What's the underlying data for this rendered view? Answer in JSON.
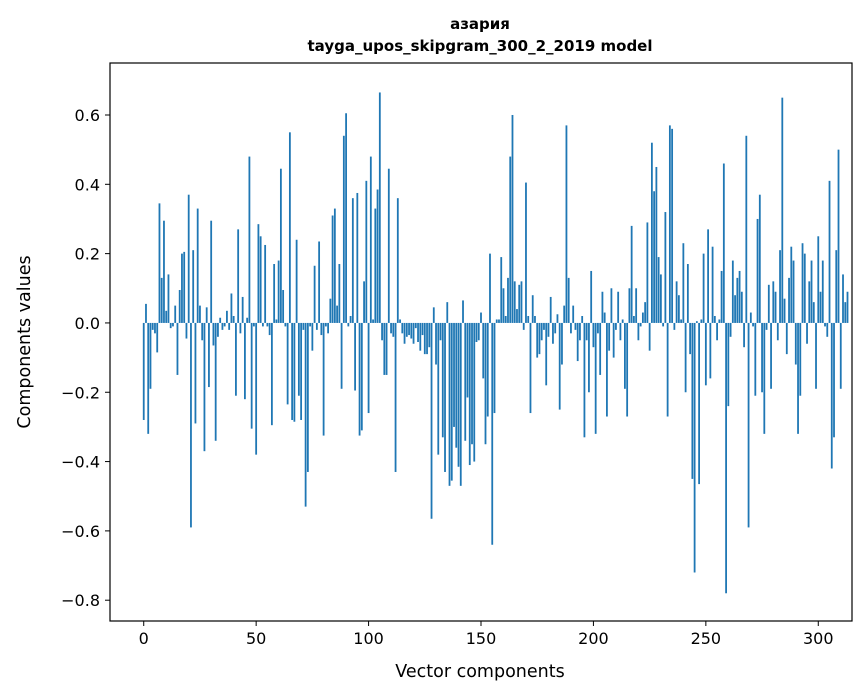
{
  "chart_data": {
    "type": "bar",
    "title": "азария",
    "subtitle": "tayga_upos_skipgram_300_2_2019 model",
    "xlabel": "Vector components",
    "ylabel": "Components values",
    "xlim": [
      -15,
      315
    ],
    "ylim": [
      -0.86,
      0.75
    ],
    "xticks": [
      0,
      50,
      100,
      150,
      200,
      250,
      300
    ],
    "yticks": [
      -0.8,
      -0.6,
      -0.4,
      -0.2,
      0.0,
      0.2,
      0.4,
      0.6
    ],
    "ytick_labels": [
      "−0.8",
      "−0.6",
      "−0.4",
      "−0.2",
      "0.0",
      "0.2",
      "0.4",
      "0.6"
    ],
    "bar_color": "#1f77b4",
    "series": [
      {
        "name": "азария",
        "values": [
          -0.28,
          0.055,
          -0.32,
          -0.19,
          -0.02,
          -0.03,
          -0.085,
          0.345,
          0.13,
          0.295,
          0.035,
          0.14,
          -0.015,
          -0.01,
          0.05,
          -0.15,
          0.095,
          0.2,
          0.205,
          -0.045,
          0.37,
          -0.59,
          0.21,
          -0.29,
          0.33,
          0.05,
          -0.05,
          -0.37,
          0.045,
          -0.185,
          0.295,
          -0.065,
          -0.34,
          -0.04,
          0.015,
          -0.02,
          -0.01,
          0.035,
          -0.02,
          0.085,
          0.02,
          -0.21,
          0.27,
          -0.03,
          0.075,
          -0.22,
          0.015,
          0.48,
          -0.305,
          -0.01,
          -0.38,
          0.285,
          0.25,
          -0.01,
          0.225,
          -0.01,
          -0.035,
          -0.295,
          0.17,
          0.01,
          0.18,
          0.445,
          0.095,
          -0.01,
          -0.235,
          0.55,
          -0.28,
          -0.285,
          0.24,
          -0.21,
          -0.28,
          -0.02,
          -0.53,
          -0.43,
          -0.01,
          -0.08,
          0.165,
          -0.02,
          0.235,
          -0.035,
          -0.325,
          -0.01,
          -0.03,
          0.07,
          0.31,
          0.33,
          0.05,
          0.17,
          -0.19,
          0.54,
          0.605,
          -0.01,
          0.02,
          0.36,
          -0.195,
          0.375,
          -0.325,
          -0.31,
          0.12,
          0.41,
          -0.26,
          0.48,
          0.01,
          0.33,
          0.385,
          0.665,
          -0.05,
          -0.15,
          -0.15,
          0.445,
          -0.03,
          -0.04,
          -0.43,
          0.36,
          0.01,
          -0.03,
          -0.06,
          -0.04,
          -0.035,
          -0.045,
          -0.06,
          -0.015,
          -0.055,
          -0.08,
          -0.035,
          -0.09,
          -0.09,
          -0.07,
          -0.565,
          0.045,
          -0.12,
          -0.38,
          -0.05,
          -0.33,
          -0.43,
          0.06,
          -0.47,
          -0.455,
          -0.3,
          -0.36,
          -0.415,
          -0.47,
          0.065,
          -0.34,
          -0.215,
          -0.41,
          -0.35,
          -0.4,
          -0.055,
          -0.05,
          0.03,
          -0.16,
          -0.35,
          -0.27,
          0.2,
          -0.64,
          -0.26,
          0.01,
          0.01,
          0.19,
          0.1,
          0.02,
          0.13,
          0.48,
          0.6,
          0.12,
          0.04,
          0.11,
          0.12,
          -0.02,
          0.405,
          0.02,
          -0.26,
          0.08,
          0.02,
          -0.1,
          -0.09,
          -0.05,
          -0.02,
          -0.18,
          -0.04,
          0.075,
          -0.06,
          -0.03,
          0.025,
          -0.25,
          -0.12,
          0.05,
          0.57,
          0.13,
          -0.03,
          0.05,
          -0.02,
          -0.11,
          -0.05,
          0.02,
          -0.33,
          -0.05,
          -0.2,
          0.15,
          -0.07,
          -0.32,
          -0.03,
          -0.15,
          0.09,
          0.03,
          -0.27,
          -0.08,
          0.1,
          -0.1,
          -0.02,
          0.09,
          -0.05,
          0.01,
          -0.19,
          -0.27,
          0.1,
          0.28,
          0.02,
          0.1,
          -0.05,
          -0.01,
          0.03,
          0.06,
          0.29,
          -0.08,
          0.52,
          0.38,
          0.45,
          0.19,
          0.14,
          -0.01,
          0.32,
          -0.27,
          0.57,
          0.56,
          -0.02,
          0.12,
          0.08,
          0.01,
          0.23,
          -0.2,
          0.17,
          -0.09,
          -0.45,
          -0.72,
          0.005,
          -0.465,
          0.01,
          0.2,
          -0.18,
          0.27,
          -0.16,
          0.22,
          0.02,
          -0.05,
          0.01,
          0.15,
          0.46,
          -0.78,
          -0.24,
          -0.04,
          0.18,
          0.08,
          0.13,
          0.15,
          0.09,
          -0.07,
          0.54,
          -0.59,
          0.03,
          -0.01,
          -0.21,
          0.3,
          0.37,
          -0.2,
          -0.32,
          -0.02,
          0.11,
          -0.19,
          0.12,
          0.09,
          -0.05,
          0.21,
          0.65,
          0.07,
          -0.09,
          0.13,
          0.22,
          0.18,
          -0.12,
          -0.32,
          -0.21,
          0.23,
          0.2,
          -0.06,
          0.12,
          0.18,
          0.06,
          -0.19,
          0.25,
          0.09,
          0.18,
          -0.01,
          -0.04,
          0.41,
          -0.42,
          -0.33,
          0.21,
          0.5,
          -0.19,
          0.14,
          0.06,
          0.09
        ]
      }
    ]
  }
}
